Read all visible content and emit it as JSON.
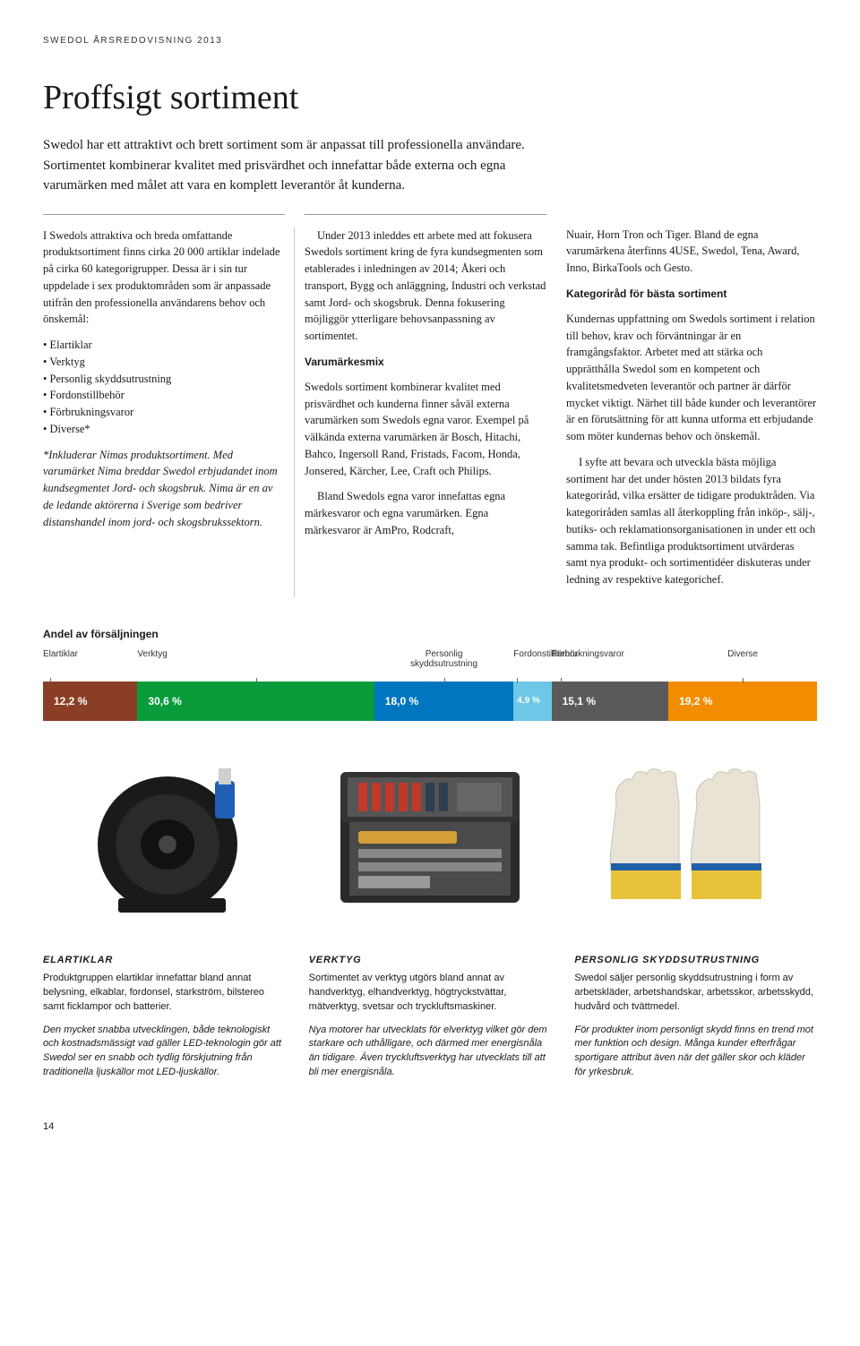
{
  "header": "SWEDOL ÅRSREDOVISNING 2013",
  "title": "Proffsigt sortiment",
  "intro": "Swedol har ett attraktivt och brett sortiment som är anpassat till professionella användare. Sortimentet kombinerar kvalitet med prisvärdhet och innefattar både externa och egna varumärken med målet att vara en komplett leverantör åt kunderna.",
  "col1": {
    "p1": "I Swedols attraktiva och breda omfattande produktsortiment finns cirka 20 000 artiklar indelade på cirka 60 kategorigrupper. Dessa är i sin tur uppdelade i sex produktområden som är anpassade utifrån den professionella användarens behov och önskemål:",
    "bullets": [
      "Elartiklar",
      "Verktyg",
      "Personlig skyddsutrustning",
      "Fordonstillbehör",
      "Förbrukningsvaror",
      "Diverse*"
    ],
    "p2": "*Inkluderar Nimas produktsortiment. Med varumärket Nima breddar Swedol erbjudandet inom kundsegmentet Jord- och skogsbruk. Nima är en av de ledande aktörerna i Sverige som bedriver distanshandel inom jord- och skogsbrukssektorn."
  },
  "col2": {
    "p1": "Under 2013 inleddes ett arbete med att fokusera Swedols sortiment kring de fyra kundsegmenten som etablerades i inledningen av 2014; Åkeri och transport, Bygg och anläggning, Industri och verkstad samt Jord- och skogsbruk. Denna fokusering möjliggör ytterligare behovsanpassning av sortimentet.",
    "h": "Varumärkesmix",
    "p2": "Swedols sortiment kombinerar kvalitet med prisvärdhet och kunderna finner såväl externa varumärken som Swedols egna varor. Exempel på välkända externa varumärken är Bosch, Hitachi, Bahco, Ingersoll Rand, Fristads, Facom, Honda, Jonsered, Kärcher, Lee, Craft och Philips.",
    "p3": "Bland Swedols egna varor innefattas egna märkesvaror och egna varumärken. Egna märkesvaror är AmPro, Rodcraft,"
  },
  "col3": {
    "p1": "Nuair, Horn Tron och Tiger. Bland de egna varumärkena återfinns 4USE, Swedol, Tena, Award, Inno, BirkaTools och Gesto.",
    "h": "Kategoriråd för bästa sortiment",
    "p2": "Kundernas uppfattning om Swedols sortiment i relation till behov, krav och förväntningar är en framgångsfaktor. Arbetet med att stärka och upprätthålla Swedol som en kompetent och kvalitetsmedveten leverantör och partner är därför mycket viktigt. Närhet till både kunder och leverantörer är en förutsättning för att kunna utforma ett erbjudande som möter kundernas behov och önskemål.",
    "p3": "I syfte att bevara och utveckla bästa möjliga sortiment har det under hösten 2013 bildats fyra kategoriråd, vilka ersätter de tidigare produktråden. Via kategoriråden samlas all återkoppling från inköp-, sälj-, butiks- och reklamationsorganisationen in under ett och samma tak. Befintliga produktsortiment utvärderas samt nya produkt- och sortimentidéer diskuteras under ledning av respektive kategorichef."
  },
  "chart": {
    "title": "Andel av försäljningen",
    "segments": [
      {
        "label": "Elartiklar",
        "value": "12,2 %",
        "width": 12.2,
        "color": "#8a3e25",
        "labelAlign": "left",
        "tickLeft": 8
      },
      {
        "label": "Verktyg",
        "value": "30,6 %",
        "width": 30.6,
        "color": "#0a9b3b",
        "labelAlign": "left",
        "tickLeft": 50
      },
      {
        "label": "Personlig\nskyddsutrustning",
        "value": "18,0 %",
        "width": 18.0,
        "color": "#0076c0",
        "labelAlign": "center",
        "tickLeft": 50
      },
      {
        "label": "Fordonstillbehör",
        "value": "4,9 %",
        "width": 4.9,
        "color": "#6dc7e6",
        "labelAlign": "left",
        "tickLeft": 8
      },
      {
        "label": "Förbrukningsvaror",
        "value": "15,1 %",
        "width": 15.1,
        "color": "#5a5a5a",
        "labelAlign": "left",
        "tickLeft": 8
      },
      {
        "label": "Diverse",
        "value": "19,2 %",
        "width": 19.2,
        "color": "#f28c00",
        "labelAlign": "center",
        "tickLeft": 50
      }
    ]
  },
  "bottom": {
    "c1": {
      "title": "ELARTIKLAR",
      "p1": "Produktgruppen elartiklar innefattar bland annat belysning, elkablar, fordonsel, starkström, bilstereo samt ficklampor och batterier.",
      "p2": "Den mycket snabba utvecklingen, både teknologiskt och kostnadsmässigt vad gäller LED-teknologin gör att Swedol ser en snabb och tydlig förskjutning från traditionella ljuskällor mot LED-ljuskällor."
    },
    "c2": {
      "title": "VERKTYG",
      "p1": "Sortimentet av verktyg utgörs bland annat av handverktyg, elhandverktyg, högtryckstvättar, mätverktyg, svetsar och tryckluftsmaskiner.",
      "p2": "Nya motorer har utvecklats för elverktyg vilket gör dem starkare och uthålligare, och därmed mer energisnåla än tidigare. Även tryckluftsverktyg har utvecklats till att bli mer energisnåla."
    },
    "c3": {
      "title": "PERSONLIG SKYDDSUTRUSTNING",
      "p1": "Swedol säljer personlig skyddsutrustning i form av arbetskläder, arbetshandskar, arbetsskor, arbetsskydd, hudvård och tvättmedel.",
      "p2": "För produkter inom personligt skydd finns en trend mot mer funktion och design. Många kunder efterfrågar sportigare attribut även när det gäller skor och kläder för yrkesbruk."
    }
  },
  "pageNum": "14"
}
